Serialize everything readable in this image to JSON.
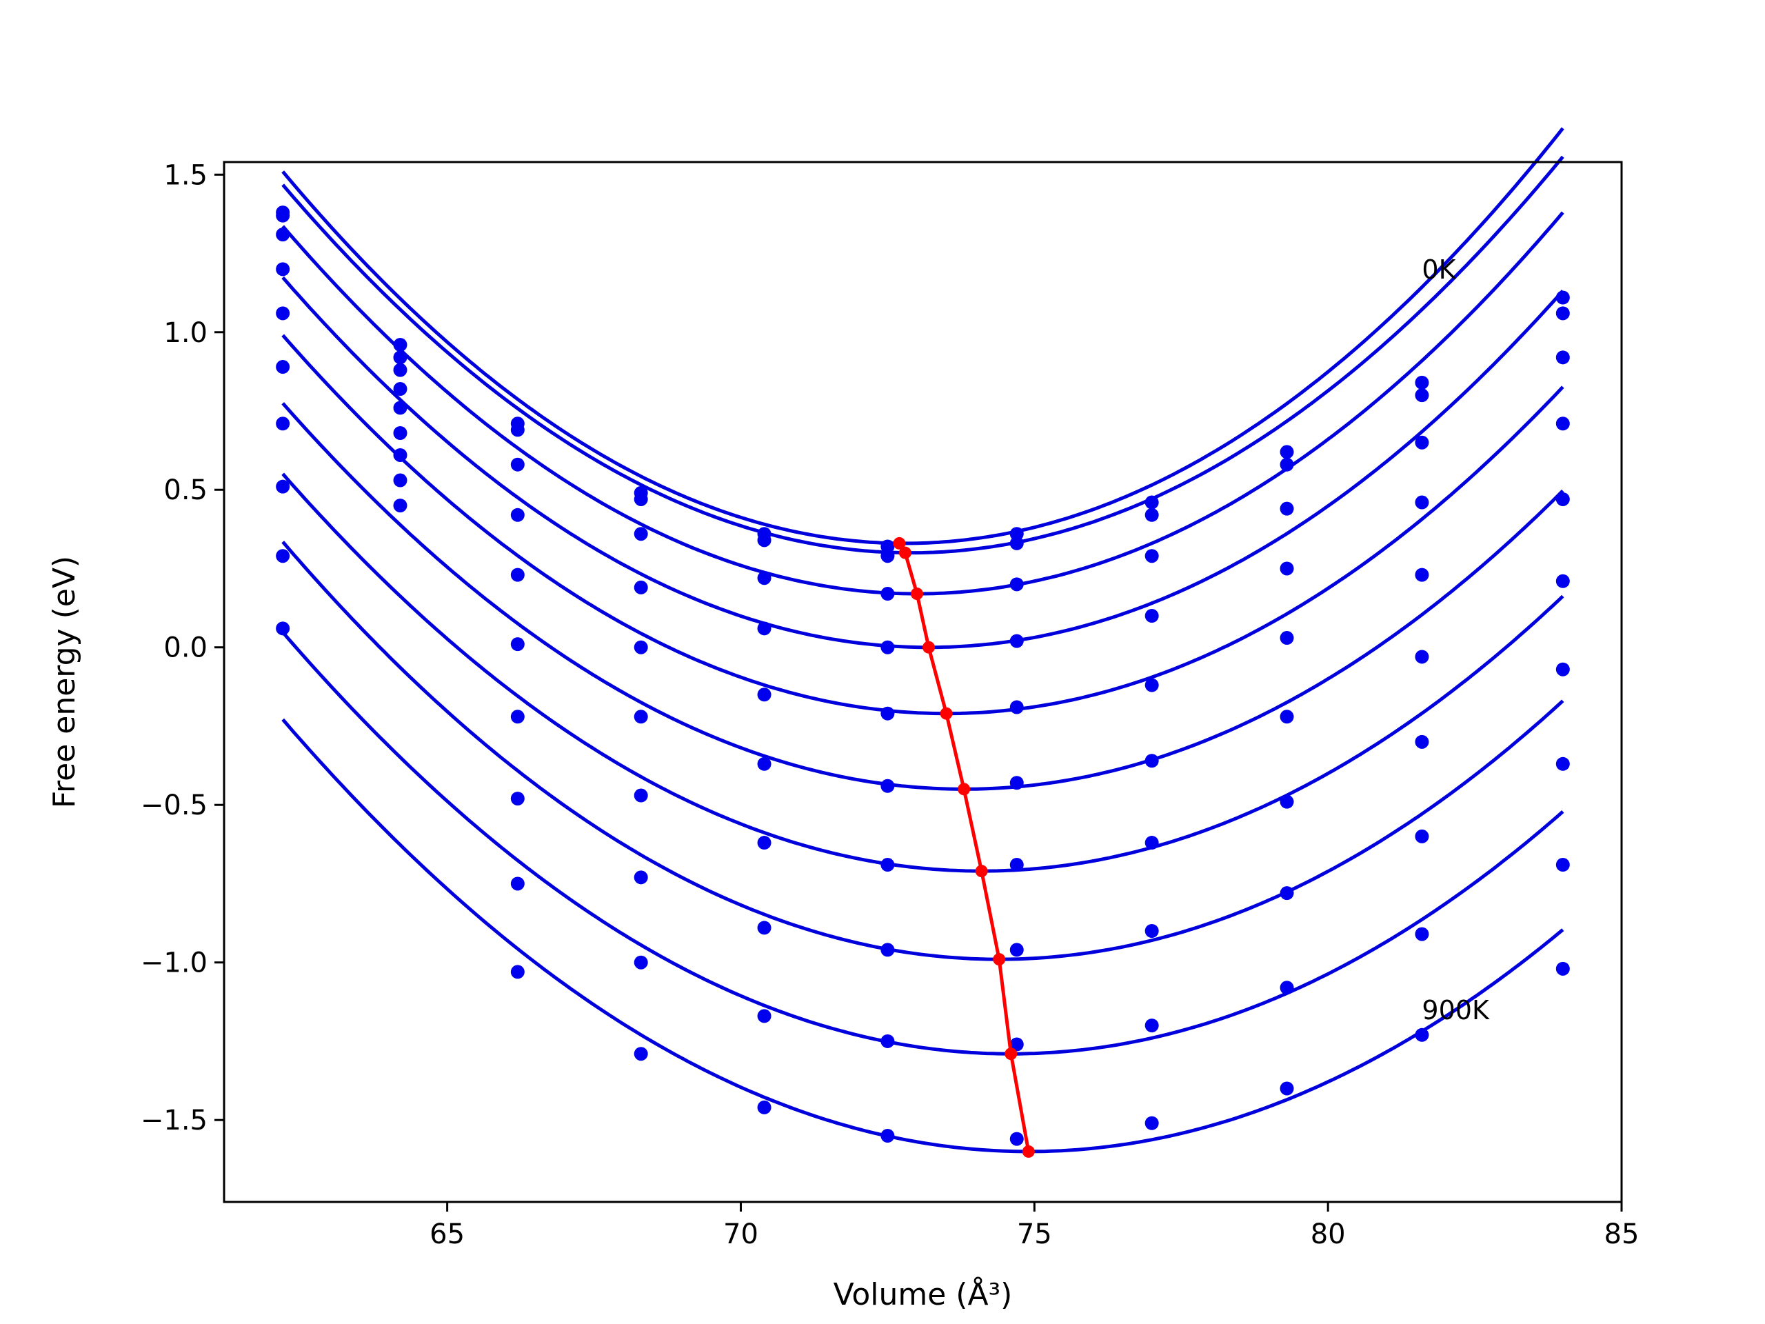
{
  "chart_data": {
    "type": "line",
    "title": "",
    "xlabel": "Volume (Å³)",
    "ylabel": "Free energy (eV)",
    "xlim": [
      61.2,
      85.0
    ],
    "ylim": [
      -1.76,
      1.54
    ],
    "xticks": [
      65,
      70,
      75,
      80,
      85
    ],
    "yticks": [
      1.5,
      1.0,
      0.5,
      0.0,
      -0.5,
      -1.0,
      -1.5
    ],
    "xtick_labels": [
      "65",
      "70",
      "75",
      "80",
      "85"
    ],
    "ytick_labels": [
      "1.5",
      "1.0",
      "0.5",
      "0.0",
      "−0.5",
      "−1.0",
      "−1.5"
    ],
    "grid": false,
    "colors": {
      "fit": "#0000dd",
      "points": "#0000ee",
      "minimum": "#ff0000"
    },
    "annotations": [
      {
        "text": "0K",
        "x": 81.6,
        "y": 1.17
      },
      {
        "text": "900K",
        "x": 81.6,
        "y": -1.18
      }
    ],
    "x": [
      62.2,
      64.2,
      66.2,
      68.3,
      70.4,
      72.5,
      74.7,
      77.0,
      79.3,
      81.6,
      84.0
    ],
    "series": [
      {
        "values": [
          1.38,
          0.96,
          0.71,
          0.49,
          0.36,
          0.32,
          0.36,
          0.46,
          0.62,
          0.84,
          1.11
        ],
        "fit": {
          "xmin": 62.2,
          "V0": 72.8,
          "Fmin": 0.33,
          "a": 0.0105
        }
      },
      {
        "values": [
          1.37,
          0.92,
          0.69,
          0.47,
          0.34,
          0.29,
          0.33,
          0.42,
          0.58,
          0.8,
          1.06
        ],
        "fit": {
          "xmin": 62.2,
          "V0": 72.9,
          "Fmin": 0.3,
          "a": 0.0102
        }
      },
      {
        "values": [
          1.31,
          0.88,
          0.58,
          0.36,
          0.22,
          0.17,
          0.2,
          0.29,
          0.44,
          0.65,
          0.92
        ],
        "fit": {
          "xmin": 62.2,
          "V0": 73.0,
          "Fmin": 0.17,
          "a": 0.01
        }
      },
      {
        "values": [
          1.2,
          0.82,
          0.42,
          0.19,
          0.06,
          0.0,
          0.02,
          0.1,
          0.25,
          0.46,
          0.71
        ],
        "fit": {
          "xmin": 62.2,
          "V0": 73.2,
          "Fmin": 0.0,
          "a": 0.0097
        }
      },
      {
        "values": [
          1.06,
          0.76,
          0.23,
          0.0,
          -0.15,
          -0.21,
          -0.19,
          -0.12,
          0.03,
          0.23,
          0.47
        ],
        "fit": {
          "xmin": 62.2,
          "V0": 73.5,
          "Fmin": -0.21,
          "a": 0.0094
        }
      },
      {
        "values": [
          0.89,
          0.68,
          0.01,
          -0.22,
          -0.37,
          -0.44,
          -0.43,
          -0.36,
          -0.22,
          -0.03,
          0.21
        ],
        "fit": {
          "xmin": 62.2,
          "V0": 73.8,
          "Fmin": -0.45,
          "a": 0.0091
        }
      },
      {
        "values": [
          0.71,
          0.61,
          -0.22,
          -0.47,
          -0.62,
          -0.69,
          -0.69,
          -0.62,
          -0.49,
          -0.3,
          -0.07
        ],
        "fit": {
          "xmin": 62.2,
          "V0": 74.1,
          "Fmin": -0.71,
          "a": 0.0089
        }
      },
      {
        "values": [
          0.51,
          0.53,
          -0.48,
          -0.73,
          -0.89,
          -0.96,
          -0.96,
          -0.9,
          -0.78,
          -0.6,
          -0.37
        ],
        "fit": {
          "xmin": 62.2,
          "V0": 74.4,
          "Fmin": -0.99,
          "a": 0.0089
        }
      },
      {
        "values": [
          0.29,
          0.45,
          -0.75,
          -1.0,
          -1.17,
          -1.25,
          -1.26,
          -1.2,
          -1.08,
          -0.91,
          -0.69
        ],
        "fit": {
          "xmin": 62.2,
          "V0": 74.6,
          "Fmin": -1.29,
          "a": 0.0087
        }
      },
      {
        "values": [
          0.06,
          null,
          -1.03,
          -1.29,
          -1.46,
          -1.55,
          -1.56,
          -1.51,
          -1.4,
          -1.23,
          -1.02
        ],
        "fit": {
          "xmin": 62.2,
          "V0": 74.9,
          "Fmin": -1.6,
          "a": 0.0085
        }
      }
    ],
    "minimum_curve": {
      "x": [
        72.7,
        72.8,
        73.0,
        73.2,
        73.5,
        73.8,
        74.1,
        74.4,
        74.6,
        74.9
      ],
      "y": [
        0.33,
        0.3,
        0.17,
        0.0,
        -0.21,
        -0.45,
        -0.71,
        -0.99,
        -1.29,
        -1.6
      ]
    }
  }
}
